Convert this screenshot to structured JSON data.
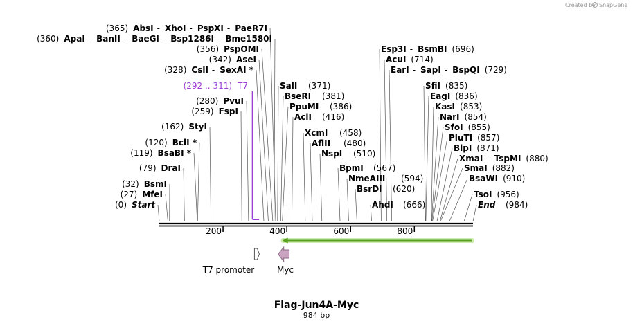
{
  "credit": {
    "text": "Created by",
    "brand": "SnapGene"
  },
  "title": "Flag-Jun4A-Myc",
  "subtitle": "984 bp",
  "sequence": {
    "length": 984
  },
  "axis": {
    "ticks": [
      200,
      400,
      600,
      800
    ]
  },
  "ends": {
    "start_pos": "(0)",
    "start_label": "Start",
    "end_label": "End",
    "end_pos": "(984)"
  },
  "primer": {
    "label": "T7",
    "range": "(292 .. 311)",
    "start": 292,
    "end": 311,
    "color": "#9a3fd6"
  },
  "features": [
    {
      "name": "T7 promoter",
      "start": 292,
      "end": 311,
      "color": "#ffffff",
      "stroke": "#555555"
    },
    {
      "name": "Myc",
      "start": 386,
      "end": 416,
      "color": "#c9a3c0",
      "stroke": "#8a6a84"
    }
  ],
  "orf": {
    "start": 984,
    "end": 386,
    "color": "#5aa020",
    "glow": "#cdeeb0"
  },
  "left_labels": [
    {
      "row": "(365)  AbsI  -  XhoI  -  PspXI  -  PaeR7I",
      "pos": 365,
      "parts": [
        [
          "p",
          "(365)"
        ],
        [
          "e",
          "AbsI"
        ],
        [
          "s",
          "-"
        ],
        [
          "e",
          "XhoI"
        ],
        [
          "s",
          "-"
        ],
        [
          "e",
          "PspXI"
        ],
        [
          "s",
          "-"
        ],
        [
          "e",
          "PaeR7I"
        ]
      ]
    },
    {
      "row": "(360)  ApaI - BanII - BaeGI - Bsp1286I - Bme1580I",
      "pos": 360,
      "parts": [
        [
          "p",
          "(360)"
        ],
        [
          "e",
          "ApaI"
        ],
        [
          "s",
          "-"
        ],
        [
          "e",
          "BanII"
        ],
        [
          "s",
          "-"
        ],
        [
          "e",
          "BaeGI"
        ],
        [
          "s",
          "-"
        ],
        [
          "e",
          "Bsp1286I"
        ],
        [
          "s",
          "-"
        ],
        [
          "e",
          "Bme1580I"
        ]
      ]
    },
    {
      "row": "(356)  PspOMI",
      "pos": 356,
      "parts": [
        [
          "p",
          "(356)"
        ],
        [
          "e",
          "PspOMI"
        ]
      ]
    },
    {
      "row": "(342)  AseI",
      "pos": 342,
      "parts": [
        [
          "p",
          "(342)"
        ],
        [
          "e",
          "AseI"
        ]
      ]
    },
    {
      "row": "(328)  CslI - SexAI *",
      "pos": 328,
      "parts": [
        [
          "p",
          "(328)"
        ],
        [
          "e",
          "CslI"
        ],
        [
          "s",
          "-"
        ],
        [
          "e",
          "SexAI *"
        ]
      ]
    },
    {
      "row": "(280)  PvuI",
      "pos": 280,
      "parts": [
        [
          "p",
          "(280)"
        ],
        [
          "e",
          "PvuI"
        ]
      ]
    },
    {
      "row": "(259)  FspI",
      "pos": 259,
      "parts": [
        [
          "p",
          "(259)"
        ],
        [
          "e",
          "FspI"
        ]
      ]
    },
    {
      "row": "(162)  StyI",
      "pos": 162,
      "parts": [
        [
          "p",
          "(162)"
        ],
        [
          "e",
          "StyI"
        ]
      ]
    },
    {
      "row": "(120)  BclI *",
      "pos": 120,
      "parts": [
        [
          "p",
          "(120)"
        ],
        [
          "e",
          "BclI *"
        ]
      ]
    },
    {
      "row": "(119)  BsaBI *",
      "pos": 119,
      "parts": [
        [
          "p",
          "(119)"
        ],
        [
          "e",
          "BsaBI *"
        ]
      ]
    },
    {
      "row": "(79)  DraI",
      "pos": 79,
      "parts": [
        [
          "p",
          "(79)"
        ],
        [
          "e",
          "DraI"
        ]
      ]
    },
    {
      "row": "(32)  BsmI",
      "pos": 32,
      "parts": [
        [
          "p",
          "(32)"
        ],
        [
          "e",
          "BsmI"
        ]
      ]
    },
    {
      "row": "(27)  MfeI",
      "pos": 27,
      "parts": [
        [
          "p",
          "(27)"
        ],
        [
          "e",
          "MfeI"
        ]
      ]
    }
  ],
  "mid_labels": [
    {
      "name": "SalI",
      "pos_text": "(371)",
      "pos": 371
    },
    {
      "name": "BseRI",
      "pos_text": "(381)",
      "pos": 381
    },
    {
      "name": "PpuMI",
      "pos_text": "(386)",
      "pos": 386
    },
    {
      "name": "AclI",
      "pos_text": "(416)",
      "pos": 416
    },
    {
      "name": "XcmI",
      "pos_text": "(458)",
      "pos": 458
    },
    {
      "name": "AflII",
      "pos_text": "(480)",
      "pos": 480
    },
    {
      "name": "NspI",
      "pos_text": "(510)",
      "pos": 510
    },
    {
      "name": "BpmI",
      "pos_text": "(567)",
      "pos": 567
    },
    {
      "name": "NmeAIII",
      "pos_text": "(594)",
      "pos": 594
    },
    {
      "name": "BsrDI",
      "pos_text": "(620)",
      "pos": 620
    },
    {
      "name": "AhdI",
      "pos_text": "(666)",
      "pos": 666
    }
  ],
  "right_top_labels": [
    {
      "row": "Esp3I  -  BsmBI  (696)",
      "pos": 696,
      "parts": [
        [
          "e",
          "Esp3I"
        ],
        [
          "s",
          "-"
        ],
        [
          "e",
          "BsmBI"
        ],
        [
          "p",
          "(696)"
        ]
      ]
    },
    {
      "row": "AcuI  (714)",
      "pos": 714,
      "parts": [
        [
          "e",
          "AcuI"
        ],
        [
          "p",
          "(714)"
        ]
      ]
    },
    {
      "row": "EarI  -  SapI  -  BspQI  (729)",
      "pos": 729,
      "parts": [
        [
          "e",
          "EarI"
        ],
        [
          "s",
          "-"
        ],
        [
          "e",
          "SapI"
        ],
        [
          "s",
          "-"
        ],
        [
          "e",
          "BspQI"
        ],
        [
          "p",
          "(729)"
        ]
      ]
    }
  ],
  "right_labels": [
    {
      "row": "SfiI  (835)",
      "pos": 835,
      "parts": [
        [
          "e",
          "SfiI"
        ],
        [
          "p",
          "(835)"
        ]
      ]
    },
    {
      "row": "EagI  (836)",
      "pos": 836,
      "parts": [
        [
          "e",
          "EagI"
        ],
        [
          "p",
          "(836)"
        ]
      ]
    },
    {
      "row": "KasI  (853)",
      "pos": 853,
      "parts": [
        [
          "e",
          "KasI"
        ],
        [
          "p",
          "(853)"
        ]
      ]
    },
    {
      "row": "NarI  (854)",
      "pos": 854,
      "parts": [
        [
          "e",
          "NarI"
        ],
        [
          "p",
          "(854)"
        ]
      ]
    },
    {
      "row": "SfoI  (855)",
      "pos": 855,
      "parts": [
        [
          "e",
          "SfoI"
        ],
        [
          "p",
          "(855)"
        ]
      ]
    },
    {
      "row": "PluTI  (857)",
      "pos": 857,
      "parts": [
        [
          "e",
          "PluTI"
        ],
        [
          "p",
          "(857)"
        ]
      ]
    },
    {
      "row": "BlpI  (871)",
      "pos": 871,
      "parts": [
        [
          "e",
          "BlpI"
        ],
        [
          "p",
          "(871)"
        ]
      ]
    },
    {
      "row": "XmaI  -  TspMI  (880)",
      "pos": 880,
      "parts": [
        [
          "e",
          "XmaI"
        ],
        [
          "s",
          "-"
        ],
        [
          "e",
          "TspMI"
        ],
        [
          "p",
          "(880)"
        ]
      ]
    },
    {
      "row": "SmaI  (882)",
      "pos": 882,
      "parts": [
        [
          "e",
          "SmaI"
        ],
        [
          "p",
          "(882)"
        ]
      ]
    },
    {
      "row": "BsaWI  (910)",
      "pos": 910,
      "parts": [
        [
          "e",
          "BsaWI"
        ],
        [
          "p",
          "(910)"
        ]
      ]
    },
    {
      "row": "TsoI  (956)",
      "pos": 956,
      "parts": [
        [
          "e",
          "TsoI"
        ],
        [
          "p",
          "(956)"
        ]
      ]
    }
  ]
}
